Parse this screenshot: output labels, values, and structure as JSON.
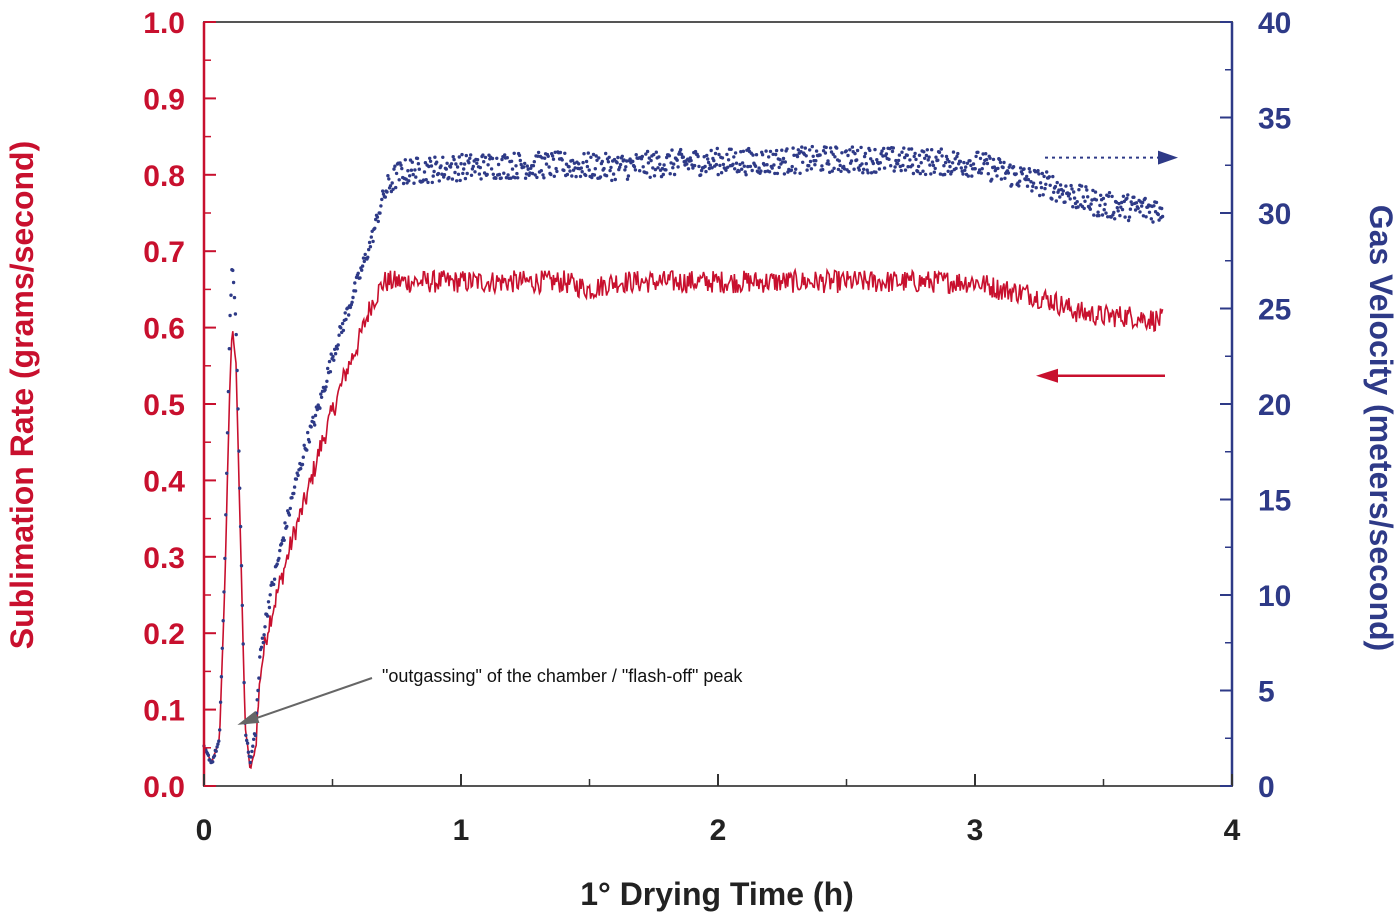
{
  "colors": {
    "red": "#c8102e",
    "blue": "#2e3a87",
    "axis": "#555555",
    "annotation_arrow": "#666666"
  },
  "chart_data": {
    "type": "line",
    "xlabel": "1° Drying Time (h)",
    "ylabel_left": "Sublimation Rate (grams/second)",
    "ylabel_right": "Gas Velocity (meters/second)",
    "xlim": [
      0,
      4
    ],
    "ylim_left": [
      0.0,
      1.0
    ],
    "ylim_right": [
      0,
      40
    ],
    "x_ticks": [
      "0",
      "1",
      "2",
      "3",
      "4"
    ],
    "y_left_ticks": [
      "0.0",
      "0.1",
      "0.2",
      "0.3",
      "0.4",
      "0.5",
      "0.6",
      "0.7",
      "0.8",
      "0.9",
      "1.0"
    ],
    "y_right_ticks": [
      "0",
      "5",
      "10",
      "15",
      "20",
      "25",
      "30",
      "35",
      "40"
    ],
    "grid": false,
    "annotation": {
      "text": "\"outgassing\" of the chamber / \"flash-off\" peak",
      "points_to": {
        "x": 0.13,
        "y_left": 0.08
      }
    },
    "series": [
      {
        "axis": "left",
        "style": "line",
        "color": "#c8102e",
        "x": [
          0.0,
          0.03,
          0.06,
          0.08,
          0.1,
          0.11,
          0.125,
          0.14,
          0.16,
          0.18,
          0.2,
          0.22,
          0.25,
          0.3,
          0.35,
          0.4,
          0.45,
          0.5,
          0.55,
          0.6,
          0.65,
          0.7,
          0.8,
          1.0,
          1.2,
          1.4,
          1.5,
          1.6,
          1.8,
          2.0,
          2.2,
          2.4,
          2.6,
          2.8,
          3.0,
          3.1,
          3.2,
          3.3,
          3.4,
          3.5,
          3.6,
          3.7,
          3.73
        ],
        "y": [
          0.05,
          0.03,
          0.06,
          0.25,
          0.52,
          0.6,
          0.55,
          0.35,
          0.08,
          0.02,
          0.05,
          0.15,
          0.21,
          0.27,
          0.33,
          0.38,
          0.44,
          0.49,
          0.54,
          0.58,
          0.63,
          0.66,
          0.66,
          0.66,
          0.66,
          0.66,
          0.65,
          0.66,
          0.66,
          0.66,
          0.66,
          0.66,
          0.66,
          0.66,
          0.66,
          0.65,
          0.645,
          0.635,
          0.62,
          0.615,
          0.615,
          0.61,
          0.61
        ],
        "noise": 0.015
      },
      {
        "axis": "right",
        "style": "dots",
        "color": "#2e3a87",
        "x": [
          0.0,
          0.03,
          0.06,
          0.08,
          0.1,
          0.11,
          0.125,
          0.14,
          0.16,
          0.18,
          0.2,
          0.22,
          0.25,
          0.3,
          0.35,
          0.4,
          0.45,
          0.5,
          0.55,
          0.6,
          0.65,
          0.7,
          0.75,
          0.8,
          1.0,
          1.2,
          1.4,
          1.6,
          1.8,
          2.0,
          2.2,
          2.4,
          2.6,
          2.8,
          3.0,
          3.1,
          3.2,
          3.3,
          3.4,
          3.5,
          3.6,
          3.7,
          3.73
        ],
        "y": [
          2,
          1.2,
          2.4,
          11,
          24,
          27.5,
          24,
          15,
          3,
          1.2,
          3,
          7,
          9.5,
          12.5,
          15.5,
          18,
          20,
          22.5,
          24.5,
          26.5,
          28.5,
          31,
          32,
          32.2,
          32.4,
          32.5,
          32.5,
          32.4,
          32.6,
          32.7,
          32.7,
          32.8,
          32.8,
          32.7,
          32.6,
          32.2,
          31.8,
          31.4,
          30.8,
          30.4,
          30.3,
          30.2,
          30.2
        ],
        "noise": 0.7
      }
    ]
  }
}
